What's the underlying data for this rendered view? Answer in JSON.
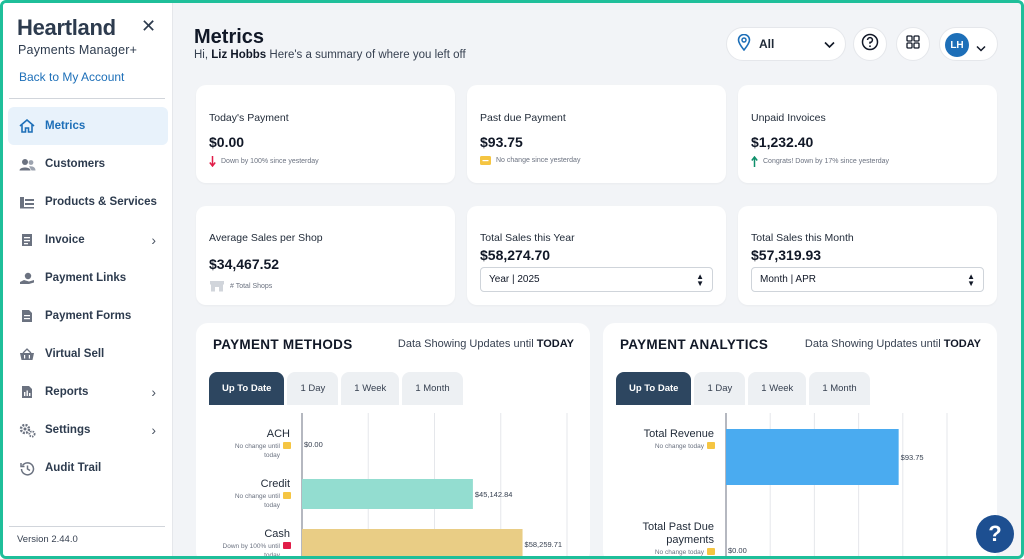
{
  "brand": {
    "name": "Heartland",
    "product": "Payments Manager+"
  },
  "sidebar": {
    "back_link": "Back to My Account",
    "items": [
      {
        "label": "Metrics",
        "icon": "home-icon"
      },
      {
        "label": "Customers",
        "icon": "users-icon"
      },
      {
        "label": "Products & Services",
        "icon": "catalog-icon"
      },
      {
        "label": "Invoice",
        "icon": "invoice-icon"
      },
      {
        "label": "Payment Links",
        "icon": "payment-link-icon"
      },
      {
        "label": "Payment Forms",
        "icon": "form-icon"
      },
      {
        "label": "Virtual Sell",
        "icon": "basket-icon"
      },
      {
        "label": "Reports",
        "icon": "reports-icon"
      },
      {
        "label": "Settings",
        "icon": "gear-icon"
      },
      {
        "label": "Audit Trail",
        "icon": "history-icon"
      }
    ],
    "version": "Version 2.44.0"
  },
  "header": {
    "title": "Metrics",
    "greeting_prefix": "Hi,",
    "user_name": "Liz Hobbs",
    "greeting_suffix": "Here's a summary of where you left off",
    "location_filter": "All",
    "avatar_initials": "LH"
  },
  "cards": {
    "today_payment": {
      "label": "Today's Payment",
      "value": "$0.00",
      "note": "Down by 100% since yesterday"
    },
    "past_due": {
      "label": "Past due Payment",
      "value": "$93.75",
      "note": "No change since yesterday"
    },
    "unpaid": {
      "label": "Unpaid Invoices",
      "value": "$1,232.40",
      "note": "Congrats! Down by 17% since yesterday"
    },
    "avg_sales": {
      "label": "Average Sales per Shop",
      "value": "$34,467.52",
      "note": "# Total Shops"
    },
    "sales_year": {
      "label": "Total Sales this Year",
      "value": "$58,274.70",
      "select": "Year | 2025"
    },
    "sales_month": {
      "label": "Total Sales this Month",
      "value": "$57,319.93",
      "select": "Month | APR"
    }
  },
  "payment_methods": {
    "title": "PAYMENT METHODS",
    "sub_prefix": "Data Showing Updates until",
    "sub_strong": "TODAY",
    "tabs": [
      "Up To Date",
      "1 Day",
      "1 Week",
      "1 Month"
    ]
  },
  "payment_analytics": {
    "title": "PAYMENT ANALYTICS",
    "sub_prefix": "Data Showing Updates until",
    "sub_strong": "TODAY",
    "tabs": [
      "Up To Date",
      "1 Day",
      "1 Week",
      "1 Month"
    ]
  },
  "chart_data": [
    {
      "type": "bar",
      "orientation": "horizontal",
      "title": "PAYMENT METHODS",
      "categories": [
        "ACH",
        "Credit",
        "Cash"
      ],
      "values": [
        0,
        45142.84,
        58259.71
      ],
      "value_labels": [
        "$0.00",
        "$45,142.84",
        "$58,259.71"
      ],
      "notes": [
        "No change until today",
        "No change until today",
        "Down by 100% until today"
      ],
      "colors": [
        "#9ca3af",
        "#93ddd0",
        "#e9cd85"
      ],
      "xlim": [
        0,
        70000
      ]
    },
    {
      "type": "bar",
      "orientation": "horizontal",
      "title": "PAYMENT ANALYTICS",
      "categories": [
        "Total Revenue",
        "Total Past Due payments"
      ],
      "values": [
        93.75,
        0
      ],
      "value_labels": [
        "$93.75",
        "$0.00"
      ],
      "notes": [
        "No change today",
        "No change today"
      ],
      "colors": [
        "#4aabf0",
        "#9ca3af"
      ],
      "xlim": [
        0,
        120
      ]
    }
  ]
}
